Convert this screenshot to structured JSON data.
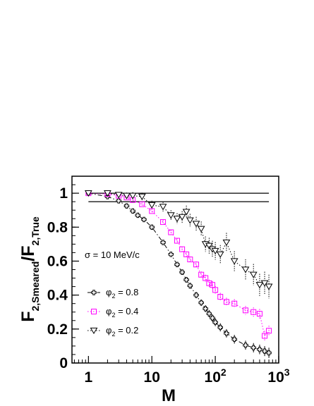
{
  "chart_data": {
    "type": "scatter",
    "title": "",
    "xlabel": "M",
    "ylabel": {
      "main": "F",
      "sub1": "2,Smeared",
      "slash": "/F",
      "sub2": "2,True"
    },
    "xscale": "log",
    "xlim": [
      0.55,
      1000
    ],
    "ylim": [
      0,
      1.1
    ],
    "x_ticks": [
      {
        "value": 1,
        "base": "1",
        "exp": ""
      },
      {
        "value": 10,
        "base": "10",
        "exp": ""
      },
      {
        "value": 100,
        "base": "10",
        "exp": "2"
      },
      {
        "value": 1000,
        "base": "10",
        "exp": "3"
      }
    ],
    "y_ticks": [
      {
        "value": 0,
        "label": "0"
      },
      {
        "value": 0.2,
        "label": "0.2"
      },
      {
        "value": 0.4,
        "label": "0.4"
      },
      {
        "value": 0.6,
        "label": "0.6"
      },
      {
        "value": 0.8,
        "label": "0.8"
      },
      {
        "value": 1.0,
        "label": "1"
      }
    ],
    "reference_lines": [
      1.0,
      0.95
    ],
    "annotation": "σ = 10 MeV/c",
    "legend_placement": "left",
    "series": [
      {
        "name": "0.8",
        "legend_label": {
          "sym": "φ",
          "sub": "2",
          "rest": " = 0.8"
        },
        "marker": "plus",
        "color": "#000000",
        "line": "dashdot",
        "x": [
          1,
          2,
          3,
          4,
          5,
          6,
          7.5,
          10,
          15,
          20,
          25,
          30,
          35,
          40,
          50,
          60,
          70,
          80,
          90,
          100,
          120,
          150,
          200,
          300,
          400,
          500,
          600,
          700
        ],
        "y": [
          1.0,
          0.98,
          0.955,
          0.925,
          0.895,
          0.87,
          0.845,
          0.8,
          0.71,
          0.64,
          0.58,
          0.535,
          0.49,
          0.455,
          0.4,
          0.355,
          0.32,
          0.29,
          0.265,
          0.24,
          0.21,
          0.175,
          0.14,
          0.105,
          0.09,
          0.08,
          0.07,
          0.06
        ]
      },
      {
        "name": "0.4",
        "legend_label": {
          "sym": "φ",
          "sub": "2",
          "rest": " = 0.4"
        },
        "marker": "square",
        "color": "#ff00ff",
        "line": "dotted",
        "x": [
          1,
          2,
          3,
          4,
          5,
          7,
          10,
          15,
          20,
          25,
          30,
          35,
          40,
          50,
          60,
          70,
          80,
          90,
          100,
          120,
          150,
          200,
          300,
          400,
          500,
          600,
          700
        ],
        "y": [
          1.0,
          0.995,
          0.985,
          0.975,
          0.96,
          0.935,
          0.895,
          0.83,
          0.77,
          0.72,
          0.67,
          0.64,
          0.61,
          0.58,
          0.52,
          0.5,
          0.47,
          0.46,
          0.43,
          0.39,
          0.36,
          0.35,
          0.31,
          0.3,
          0.29,
          0.16,
          0.19
        ]
      },
      {
        "name": "0.2",
        "legend_label": {
          "sym": "φ",
          "sub": "2",
          "rest": " = 0.2"
        },
        "marker": "triangle-down",
        "color": "#000000",
        "line": "dotted",
        "x": [
          1,
          2,
          3,
          4,
          5,
          7,
          10,
          15,
          20,
          25,
          30,
          35,
          40,
          50,
          60,
          70,
          80,
          90,
          100,
          120,
          150,
          200,
          300,
          400,
          500,
          600,
          700
        ],
        "y": [
          1.0,
          1.0,
          0.99,
          0.985,
          0.985,
          0.98,
          0.93,
          0.92,
          0.87,
          0.85,
          0.86,
          0.89,
          0.84,
          0.82,
          0.79,
          0.7,
          0.69,
          0.67,
          0.66,
          0.64,
          0.71,
          0.6,
          0.55,
          0.52,
          0.46,
          0.47,
          0.45
        ]
      }
    ]
  }
}
